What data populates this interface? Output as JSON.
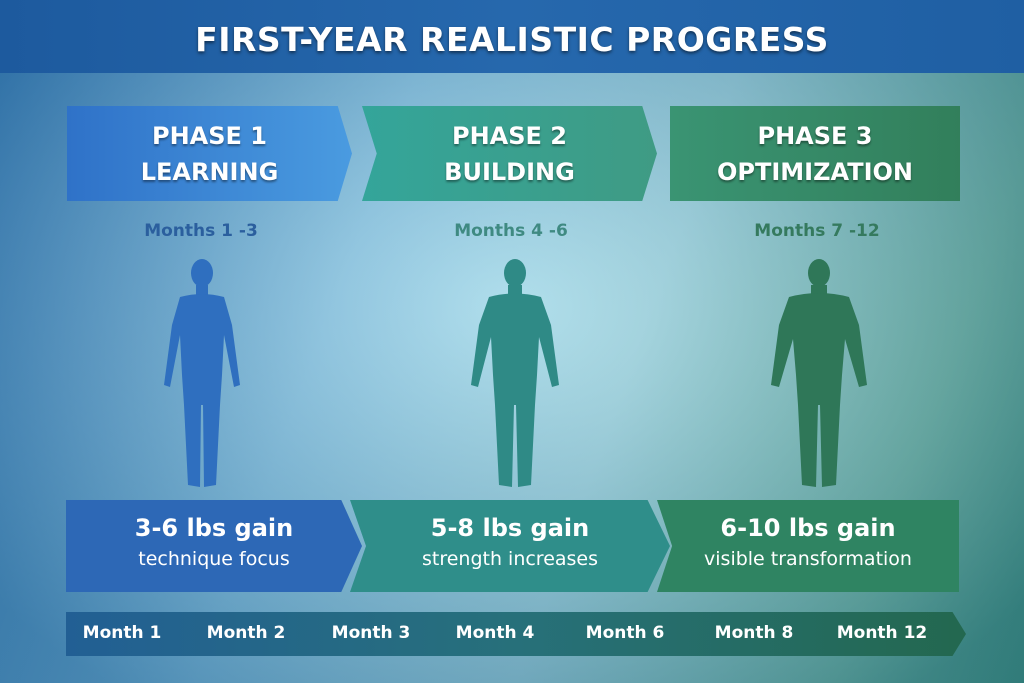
{
  "title": "FIRST-YEAR REALISTIC PROGRESS",
  "phases": [
    {
      "line1": "PHASE 1",
      "line2": "LEARNING",
      "months": "Months 1 -3",
      "gain": "3-6 lbs gain",
      "note": "technique focus",
      "color": "#2f72c8"
    },
    {
      "line1": "PHASE 2",
      "line2": "BUILDING",
      "months": "Months 4 -6",
      "gain": "5-8 lbs gain",
      "note": "strength increases",
      "color": "#35a08f"
    },
    {
      "line1": "PHASE 3",
      "line2": "OPTIMIZATION",
      "months": "Months 7 -12",
      "gain": "6-10 lbs gain",
      "note": "visible transformation",
      "color": "#327f5b"
    }
  ],
  "timeline": [
    "Month 1",
    "Month 2",
    "Month 3",
    "Month 4",
    "Month 6",
    "Month 8",
    "Month 12"
  ],
  "icons": [
    "human-silhouette-icon"
  ]
}
